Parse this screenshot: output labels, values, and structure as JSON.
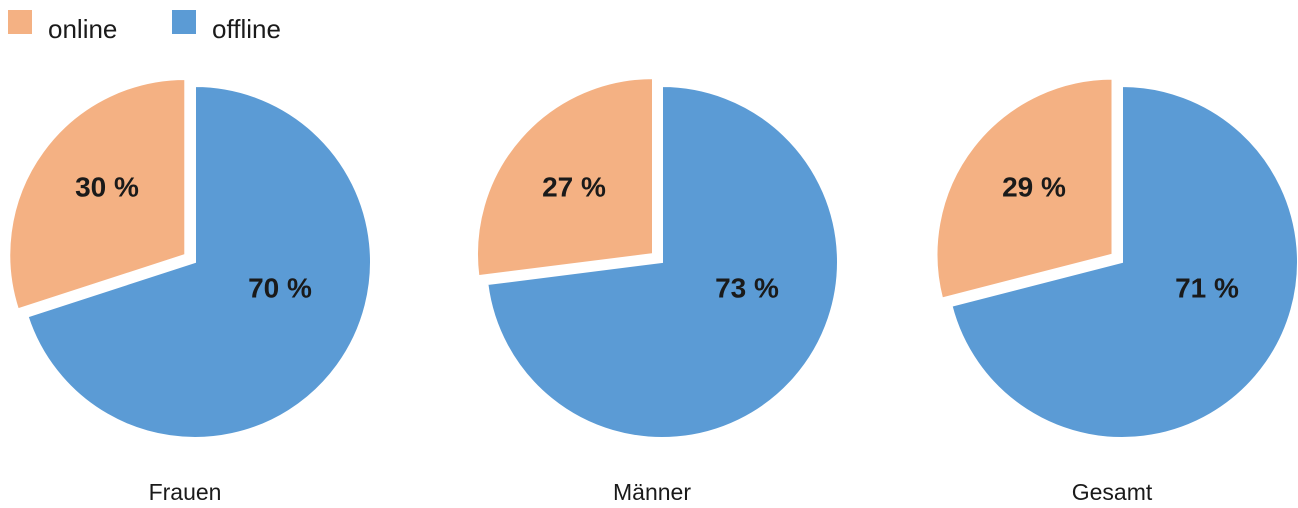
{
  "chart_data": [
    {
      "type": "pie",
      "title": "Frauen",
      "categories": [
        "online",
        "offline"
      ],
      "values": [
        30,
        70
      ],
      "value_labels": [
        "30 %",
        "70 %"
      ],
      "colors": [
        "#f4b183",
        "#5b9bd5"
      ]
    },
    {
      "type": "pie",
      "title": "Männer",
      "categories": [
        "online",
        "offline"
      ],
      "values": [
        27,
        73
      ],
      "value_labels": [
        "27 %",
        "73 %"
      ],
      "colors": [
        "#f4b183",
        "#5b9bd5"
      ]
    },
    {
      "type": "pie",
      "title": "Gesamt",
      "categories": [
        "online",
        "offline"
      ],
      "values": [
        29,
        71
      ],
      "value_labels": [
        "29 %",
        "71 %"
      ],
      "colors": [
        "#f4b183",
        "#5b9bd5"
      ]
    }
  ]
}
